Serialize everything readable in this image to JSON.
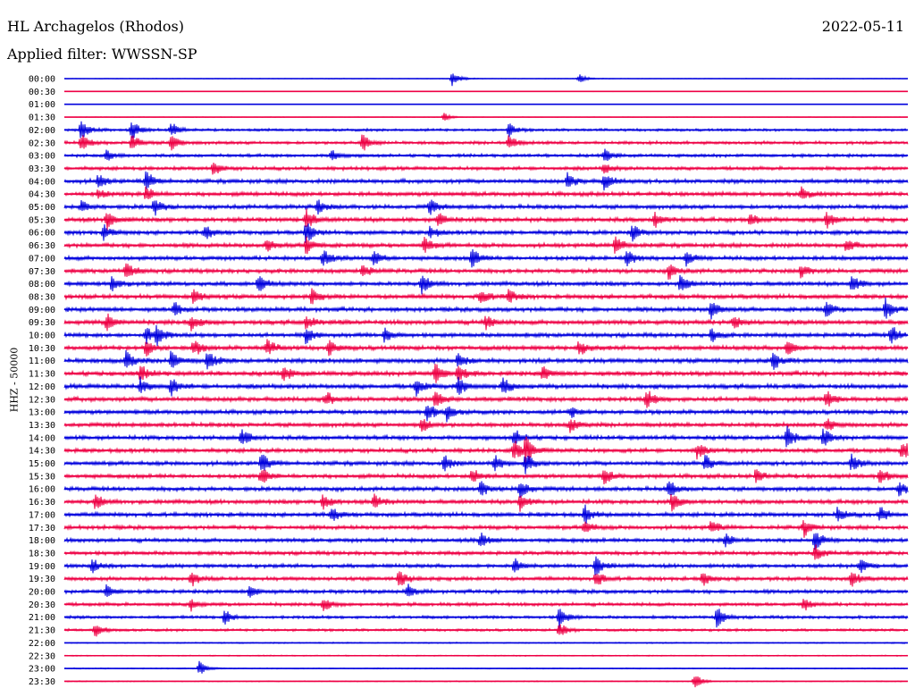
{
  "header": {
    "station": "HL Archagelos (Rhodos)",
    "date": "2022-05-11",
    "filter": "Applied filter: WWSSN-SP"
  },
  "chart_data": {
    "type": "line",
    "ylabel": "HHZ - 50000",
    "rows": [
      "00:00",
      "00:30",
      "01:00",
      "01:30",
      "02:00",
      "02:30",
      "03:00",
      "03:30",
      "04:00",
      "04:30",
      "05:00",
      "05:30",
      "06:00",
      "06:30",
      "07:00",
      "07:30",
      "08:00",
      "08:30",
      "09:00",
      "09:30",
      "10:00",
      "10:30",
      "11:00",
      "11:30",
      "12:00",
      "12:30",
      "13:00",
      "13:30",
      "14:00",
      "14:30",
      "15:00",
      "15:30",
      "16:00",
      "16:30",
      "17:00",
      "17:30",
      "18:00",
      "18:30",
      "19:00",
      "19:30",
      "20:00",
      "20:30",
      "21:00",
      "21:30",
      "22:00",
      "22:30",
      "23:00",
      "23:30"
    ],
    "row_minutes": 30,
    "noise_level": [
      0.3,
      0.2,
      0.25,
      0.3,
      1.2,
      1.5,
      1.5,
      1.7,
      2.0,
      2.0,
      2.0,
      2.1,
      2.0,
      2.0,
      2.0,
      2.0,
      2.0,
      2.1,
      2.1,
      2.2,
      2.0,
      2.1,
      2.2,
      2.2,
      2.2,
      2.2,
      2.0,
      2.0,
      2.0,
      2.0,
      2.0,
      2.0,
      2.0,
      2.0,
      2.0,
      1.9,
      1.9,
      1.8,
      1.8,
      1.8,
      1.8,
      1.6,
      1.4,
      1.2,
      0.6,
      0.5,
      0.5,
      0.5
    ],
    "events": [
      {
        "row": 0,
        "minute": 13.8,
        "amp": 9
      },
      {
        "row": 0,
        "minute": 18.3,
        "amp": 6
      },
      {
        "row": 3,
        "minute": 13.5,
        "amp": 5
      },
      {
        "row": 4,
        "minute": 0.6,
        "amp": 12
      },
      {
        "row": 4,
        "minute": 2.4,
        "amp": 12
      },
      {
        "row": 4,
        "minute": 3.8,
        "amp": 10
      },
      {
        "row": 4,
        "minute": 15.8,
        "amp": 8
      },
      {
        "row": 5,
        "minute": 0.6,
        "amp": 10
      },
      {
        "row": 5,
        "minute": 2.4,
        "amp": 10
      },
      {
        "row": 5,
        "minute": 3.8,
        "amp": 9
      },
      {
        "row": 5,
        "minute": 10.6,
        "amp": 10
      },
      {
        "row": 5,
        "minute": 15.8,
        "amp": 9
      },
      {
        "row": 6,
        "minute": 1.5,
        "amp": 7
      },
      {
        "row": 6,
        "minute": 9.5,
        "amp": 7
      },
      {
        "row": 6,
        "minute": 19.2,
        "amp": 8
      },
      {
        "row": 7,
        "minute": 5.3,
        "amp": 8
      },
      {
        "row": 7,
        "minute": 19.2,
        "amp": 6
      },
      {
        "row": 8,
        "minute": 1.2,
        "amp": 8
      },
      {
        "row": 8,
        "minute": 2.9,
        "amp": 12
      },
      {
        "row": 8,
        "minute": 17.9,
        "amp": 10
      },
      {
        "row": 8,
        "minute": 19.2,
        "amp": 10
      },
      {
        "row": 9,
        "minute": 1.2,
        "amp": 6
      },
      {
        "row": 9,
        "minute": 2.9,
        "amp": 8
      },
      {
        "row": 9,
        "minute": 26.2,
        "amp": 8
      },
      {
        "row": 10,
        "minute": 0.6,
        "amp": 7
      },
      {
        "row": 10,
        "minute": 3.2,
        "amp": 10
      },
      {
        "row": 10,
        "minute": 9.0,
        "amp": 9
      },
      {
        "row": 10,
        "minute": 13.0,
        "amp": 9
      },
      {
        "row": 11,
        "minute": 1.5,
        "amp": 12
      },
      {
        "row": 11,
        "minute": 8.6,
        "amp": 12
      },
      {
        "row": 11,
        "minute": 13.3,
        "amp": 9
      },
      {
        "row": 11,
        "minute": 21.0,
        "amp": 9
      },
      {
        "row": 11,
        "minute": 24.4,
        "amp": 8
      },
      {
        "row": 11,
        "minute": 27.1,
        "amp": 10
      },
      {
        "row": 12,
        "minute": 1.4,
        "amp": 8
      },
      {
        "row": 12,
        "minute": 5.0,
        "amp": 8
      },
      {
        "row": 12,
        "minute": 8.6,
        "amp": 13
      },
      {
        "row": 12,
        "minute": 13.0,
        "amp": 8
      },
      {
        "row": 12,
        "minute": 20.2,
        "amp": 9
      },
      {
        "row": 13,
        "minute": 7.2,
        "amp": 8
      },
      {
        "row": 13,
        "minute": 8.6,
        "amp": 12
      },
      {
        "row": 13,
        "minute": 12.8,
        "amp": 9
      },
      {
        "row": 13,
        "minute": 19.6,
        "amp": 11
      },
      {
        "row": 13,
        "minute": 27.8,
        "amp": 8
      },
      {
        "row": 14,
        "minute": 9.2,
        "amp": 10
      },
      {
        "row": 14,
        "minute": 11.0,
        "amp": 9
      },
      {
        "row": 14,
        "minute": 14.5,
        "amp": 12
      },
      {
        "row": 14,
        "minute": 20.0,
        "amp": 12
      },
      {
        "row": 14,
        "minute": 22.1,
        "amp": 8
      },
      {
        "row": 15,
        "minute": 2.2,
        "amp": 10
      },
      {
        "row": 15,
        "minute": 10.6,
        "amp": 8
      },
      {
        "row": 15,
        "minute": 21.5,
        "amp": 9
      },
      {
        "row": 15,
        "minute": 26.2,
        "amp": 8
      },
      {
        "row": 16,
        "minute": 1.7,
        "amp": 9
      },
      {
        "row": 16,
        "minute": 6.9,
        "amp": 10
      },
      {
        "row": 16,
        "minute": 12.7,
        "amp": 12
      },
      {
        "row": 16,
        "minute": 21.9,
        "amp": 10
      },
      {
        "row": 16,
        "minute": 28.0,
        "amp": 11
      },
      {
        "row": 17,
        "minute": 4.6,
        "amp": 9
      },
      {
        "row": 17,
        "minute": 8.8,
        "amp": 8
      },
      {
        "row": 17,
        "minute": 14.8,
        "amp": 10
      },
      {
        "row": 17,
        "minute": 15.8,
        "amp": 8
      },
      {
        "row": 18,
        "minute": 3.9,
        "amp": 8
      },
      {
        "row": 18,
        "minute": 23.0,
        "amp": 12
      },
      {
        "row": 18,
        "minute": 27.1,
        "amp": 9
      },
      {
        "row": 18,
        "minute": 29.2,
        "amp": 12
      },
      {
        "row": 19,
        "minute": 1.5,
        "amp": 10
      },
      {
        "row": 19,
        "minute": 4.5,
        "amp": 9
      },
      {
        "row": 19,
        "minute": 8.6,
        "amp": 8
      },
      {
        "row": 19,
        "minute": 15.0,
        "amp": 8
      },
      {
        "row": 19,
        "minute": 23.8,
        "amp": 7
      },
      {
        "row": 20,
        "minute": 2.9,
        "amp": 10
      },
      {
        "row": 20,
        "minute": 3.3,
        "amp": 12
      },
      {
        "row": 20,
        "minute": 8.6,
        "amp": 10
      },
      {
        "row": 20,
        "minute": 11.4,
        "amp": 9
      },
      {
        "row": 20,
        "minute": 23.0,
        "amp": 8
      },
      {
        "row": 20,
        "minute": 29.4,
        "amp": 11
      },
      {
        "row": 21,
        "minute": 2.9,
        "amp": 10
      },
      {
        "row": 21,
        "minute": 4.6,
        "amp": 10
      },
      {
        "row": 21,
        "minute": 7.2,
        "amp": 10
      },
      {
        "row": 21,
        "minute": 9.4,
        "amp": 9
      },
      {
        "row": 21,
        "minute": 18.3,
        "amp": 9
      },
      {
        "row": 21,
        "minute": 25.7,
        "amp": 10
      },
      {
        "row": 22,
        "minute": 2.2,
        "amp": 11
      },
      {
        "row": 22,
        "minute": 3.8,
        "amp": 12
      },
      {
        "row": 22,
        "minute": 5.1,
        "amp": 12
      },
      {
        "row": 22,
        "minute": 14.0,
        "amp": 9
      },
      {
        "row": 22,
        "minute": 25.2,
        "amp": 10
      },
      {
        "row": 23,
        "minute": 2.7,
        "amp": 10
      },
      {
        "row": 23,
        "minute": 7.8,
        "amp": 9
      },
      {
        "row": 23,
        "minute": 13.2,
        "amp": 12
      },
      {
        "row": 23,
        "minute": 14.0,
        "amp": 10
      },
      {
        "row": 23,
        "minute": 17.0,
        "amp": 9
      },
      {
        "row": 24,
        "minute": 2.7,
        "amp": 9
      },
      {
        "row": 24,
        "minute": 3.8,
        "amp": 10
      },
      {
        "row": 24,
        "minute": 12.5,
        "amp": 10
      },
      {
        "row": 24,
        "minute": 14.0,
        "amp": 12
      },
      {
        "row": 24,
        "minute": 15.6,
        "amp": 10
      },
      {
        "row": 25,
        "minute": 9.3,
        "amp": 9
      },
      {
        "row": 25,
        "minute": 13.2,
        "amp": 10
      },
      {
        "row": 25,
        "minute": 20.7,
        "amp": 11
      },
      {
        "row": 25,
        "minute": 27.1,
        "amp": 11
      },
      {
        "row": 26,
        "minute": 12.9,
        "amp": 12
      },
      {
        "row": 26,
        "minute": 13.6,
        "amp": 9
      },
      {
        "row": 26,
        "minute": 18.0,
        "amp": 7
      },
      {
        "row": 27,
        "minute": 12.7,
        "amp": 9
      },
      {
        "row": 27,
        "minute": 18.0,
        "amp": 8
      },
      {
        "row": 27,
        "minute": 27.1,
        "amp": 8
      },
      {
        "row": 28,
        "minute": 6.3,
        "amp": 12
      },
      {
        "row": 28,
        "minute": 16.0,
        "amp": 10
      },
      {
        "row": 28,
        "minute": 25.7,
        "amp": 14
      },
      {
        "row": 28,
        "minute": 27.0,
        "amp": 11
      },
      {
        "row": 29,
        "minute": 16.0,
        "amp": 12
      },
      {
        "row": 29,
        "minute": 16.4,
        "amp": 14
      },
      {
        "row": 29,
        "minute": 22.5,
        "amp": 9
      },
      {
        "row": 29,
        "minute": 29.8,
        "amp": 12
      },
      {
        "row": 30,
        "minute": 7.0,
        "amp": 12
      },
      {
        "row": 30,
        "minute": 13.5,
        "amp": 10
      },
      {
        "row": 30,
        "minute": 15.3,
        "amp": 10
      },
      {
        "row": 30,
        "minute": 16.4,
        "amp": 11
      },
      {
        "row": 30,
        "minute": 22.8,
        "amp": 10
      },
      {
        "row": 30,
        "minute": 28.0,
        "amp": 9
      },
      {
        "row": 31,
        "minute": 7.0,
        "amp": 10
      },
      {
        "row": 31,
        "minute": 14.5,
        "amp": 9
      },
      {
        "row": 31,
        "minute": 19.2,
        "amp": 10
      },
      {
        "row": 31,
        "minute": 24.6,
        "amp": 9
      },
      {
        "row": 31,
        "minute": 29.0,
        "amp": 10
      },
      {
        "row": 32,
        "minute": 14.8,
        "amp": 9
      },
      {
        "row": 32,
        "minute": 16.2,
        "amp": 12
      },
      {
        "row": 32,
        "minute": 21.5,
        "amp": 10
      },
      {
        "row": 32,
        "minute": 29.7,
        "amp": 9
      },
      {
        "row": 33,
        "minute": 1.1,
        "amp": 9
      },
      {
        "row": 33,
        "minute": 9.2,
        "amp": 10
      },
      {
        "row": 33,
        "minute": 11.0,
        "amp": 9
      },
      {
        "row": 33,
        "minute": 16.2,
        "amp": 10
      },
      {
        "row": 33,
        "minute": 21.6,
        "amp": 12
      },
      {
        "row": 34,
        "minute": 9.5,
        "amp": 8
      },
      {
        "row": 34,
        "minute": 18.5,
        "amp": 10
      },
      {
        "row": 34,
        "minute": 27.5,
        "amp": 9
      },
      {
        "row": 34,
        "minute": 29.0,
        "amp": 9
      },
      {
        "row": 35,
        "minute": 18.5,
        "amp": 9
      },
      {
        "row": 35,
        "minute": 23.0,
        "amp": 8
      },
      {
        "row": 35,
        "minute": 26.3,
        "amp": 10
      },
      {
        "row": 36,
        "minute": 14.8,
        "amp": 9
      },
      {
        "row": 36,
        "minute": 23.5,
        "amp": 8
      },
      {
        "row": 36,
        "minute": 26.7,
        "amp": 12
      },
      {
        "row": 37,
        "minute": 26.7,
        "amp": 9
      },
      {
        "row": 38,
        "minute": 1.0,
        "amp": 8
      },
      {
        "row": 38,
        "minute": 16.0,
        "amp": 9
      },
      {
        "row": 38,
        "minute": 18.9,
        "amp": 12
      },
      {
        "row": 38,
        "minute": 28.3,
        "amp": 8
      },
      {
        "row": 39,
        "minute": 4.5,
        "amp": 9
      },
      {
        "row": 39,
        "minute": 11.9,
        "amp": 12
      },
      {
        "row": 39,
        "minute": 18.9,
        "amp": 10
      },
      {
        "row": 39,
        "minute": 22.7,
        "amp": 9
      },
      {
        "row": 39,
        "minute": 28.0,
        "amp": 10
      },
      {
        "row": 40,
        "minute": 1.5,
        "amp": 7
      },
      {
        "row": 40,
        "minute": 6.6,
        "amp": 8
      },
      {
        "row": 40,
        "minute": 12.2,
        "amp": 8
      },
      {
        "row": 41,
        "minute": 4.5,
        "amp": 7
      },
      {
        "row": 41,
        "minute": 9.2,
        "amp": 8
      },
      {
        "row": 41,
        "minute": 26.3,
        "amp": 7
      },
      {
        "row": 42,
        "minute": 5.7,
        "amp": 9
      },
      {
        "row": 42,
        "minute": 17.6,
        "amp": 13
      },
      {
        "row": 42,
        "minute": 23.2,
        "amp": 12
      },
      {
        "row": 43,
        "minute": 1.1,
        "amp": 9
      },
      {
        "row": 43,
        "minute": 17.6,
        "amp": 9
      },
      {
        "row": 46,
        "minute": 4.8,
        "amp": 8
      },
      {
        "row": 47,
        "minute": 22.4,
        "amp": 10
      }
    ]
  },
  "colors": {
    "trace_a": "#0000dd",
    "trace_b": "#ee0044"
  }
}
